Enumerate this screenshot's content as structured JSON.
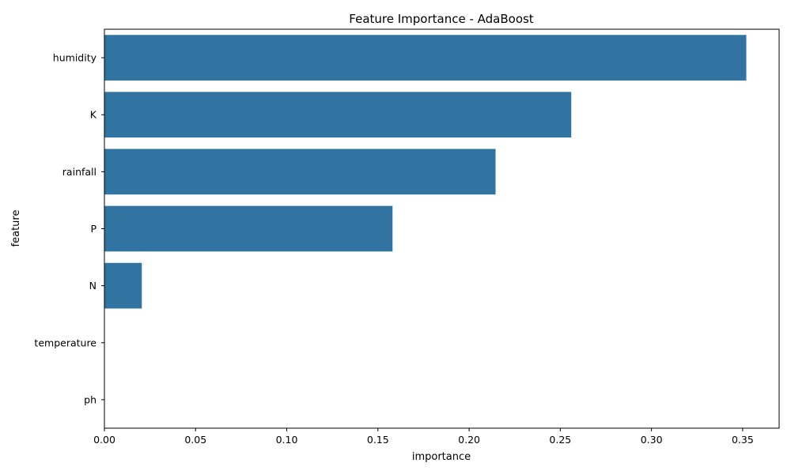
{
  "chart_data": {
    "type": "bar",
    "orientation": "horizontal",
    "title": "Feature Importance - AdaBoost",
    "xlabel": "importance",
    "ylabel": "feature",
    "categories": [
      "humidity",
      "K",
      "rainfall",
      "P",
      "N",
      "temperature",
      "ph"
    ],
    "values": [
      0.352,
      0.256,
      0.2145,
      0.158,
      0.0205,
      0.0,
      0.0
    ],
    "xlim": [
      0,
      0.37
    ],
    "xticks": [
      0.0,
      0.05,
      0.1,
      0.15,
      0.2,
      0.25,
      0.3,
      0.35
    ],
    "xtick_labels": [
      "0.00",
      "0.05",
      "0.10",
      "0.15",
      "0.20",
      "0.25",
      "0.30",
      "0.35"
    ],
    "grid": false,
    "bar_color": "#3274a1"
  }
}
